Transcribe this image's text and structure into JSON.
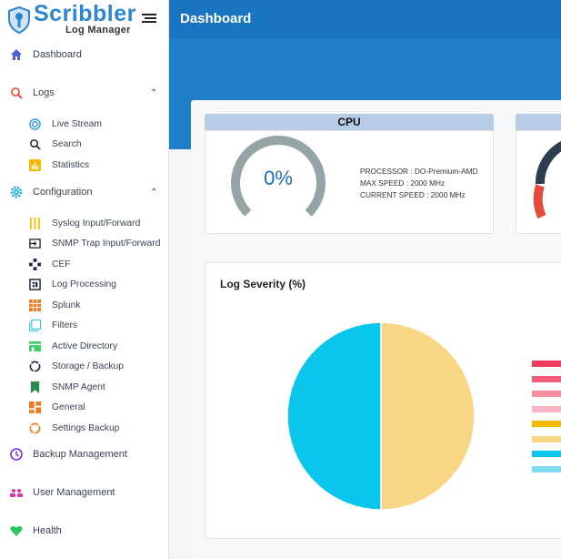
{
  "app": {
    "name": "Scribbler",
    "subtitle": "Log Manager"
  },
  "header": {
    "title": "Dashboard"
  },
  "sidebar": {
    "dashboard": "Dashboard",
    "logs": {
      "label": "Logs",
      "items": [
        "Live Stream",
        "Search",
        "Statistics"
      ]
    },
    "configuration": {
      "label": "Configuration",
      "items": [
        "Syslog Input/Forward",
        "SNMP Trap Input/Forward",
        "CEF",
        "Log Processing",
        "Splunk",
        "Filters",
        "Active Directory",
        "Storage / Backup",
        "SNMP Agent",
        "General",
        "Settings Backup"
      ]
    },
    "backup": "Backup Management",
    "users": "User Management",
    "health": "Health"
  },
  "cpu": {
    "title": "CPU",
    "usage": "0%",
    "usage_value": 0,
    "processor": "PROCESSOR : DO-Premium-AMD",
    "max_speed": "MAX SPEED : 2000 MHz",
    "current_speed": "CURRENT SPEED : 2000 MHz",
    "gauge_color": "#95a5a6"
  },
  "log_severity": {
    "title": "Log Severity (%)",
    "chart_data": {
      "type": "pie",
      "values": [
        50,
        50
      ],
      "colors": [
        "#0bc6ec",
        "#f9d686"
      ]
    },
    "legend_colors": [
      "#f03a5f",
      "#f45c78",
      "#f78da0",
      "#f9b5c3",
      "#f5b800",
      "#f9d686",
      "#0bc6ec",
      "#7fdcf3"
    ]
  },
  "colors": {
    "header": "#1a75c0",
    "accent": "#2a87d0"
  }
}
